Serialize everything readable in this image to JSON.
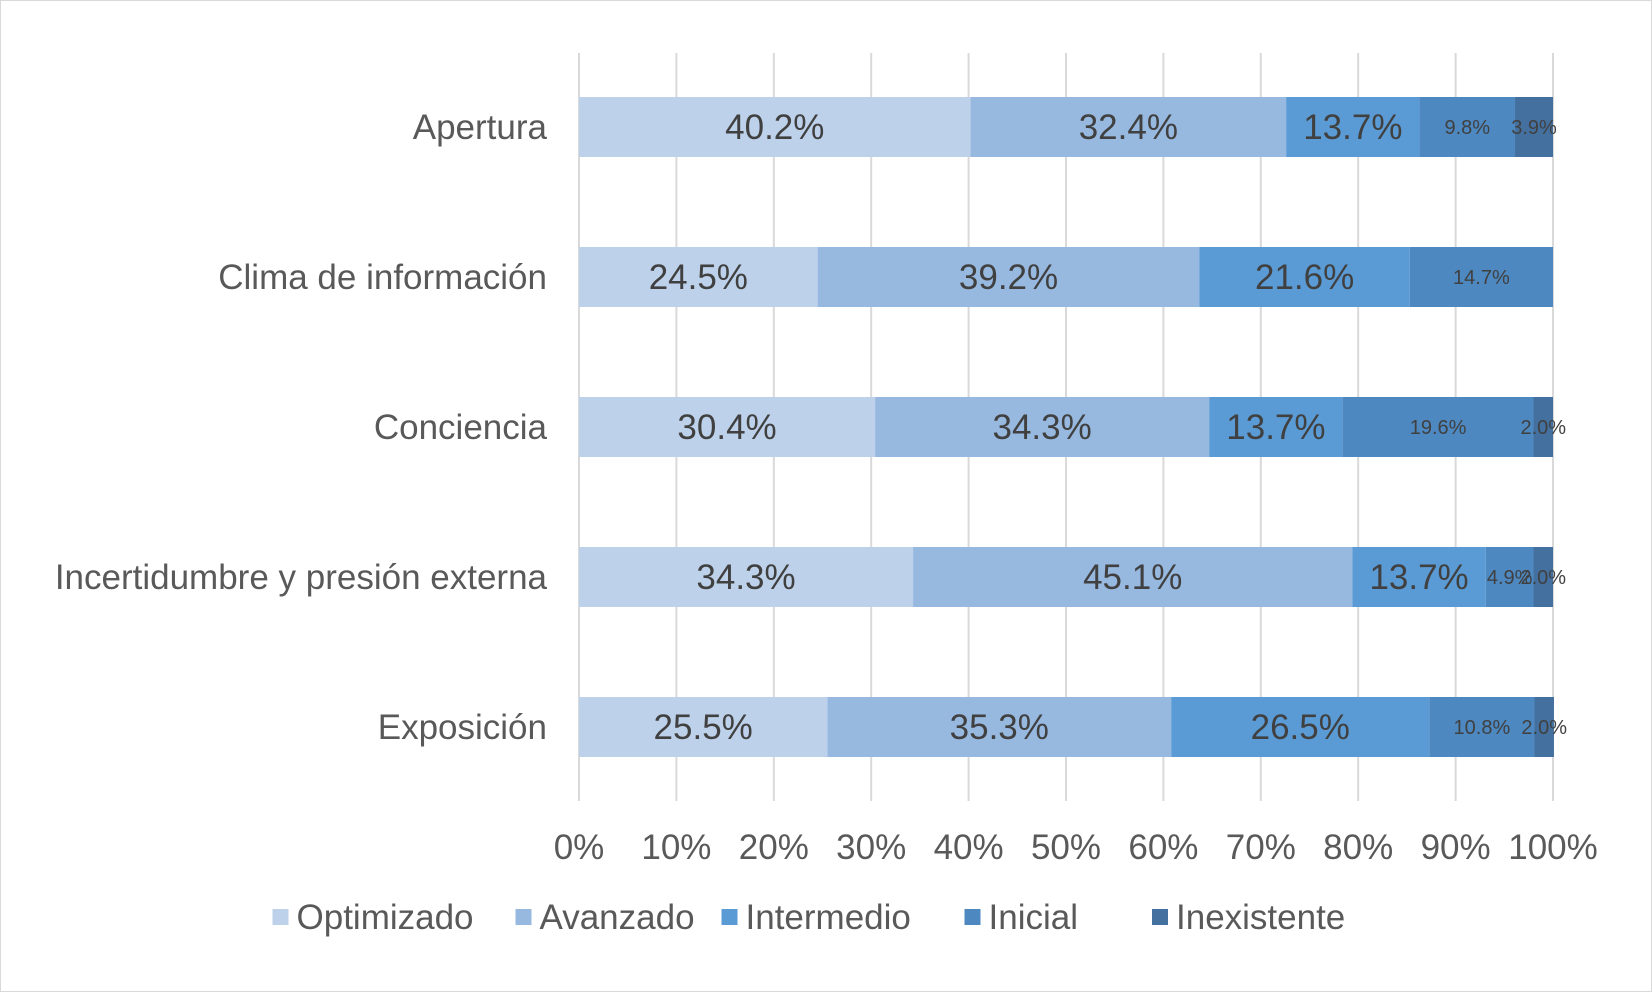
{
  "chart_data": {
    "type": "bar",
    "orientation": "horizontal",
    "stacked": "percent",
    "title": "",
    "xlabel": "",
    "ylabel": "",
    "xlim": [
      0,
      100
    ],
    "grid": true,
    "legend_position": "bottom",
    "categories": [
      "Apertura",
      "Clima de información",
      "Conciencia",
      "Incertidumbre y presión externa",
      "Exposición"
    ],
    "x_ticks": [
      "0%",
      "10%",
      "20%",
      "30%",
      "40%",
      "50%",
      "60%",
      "70%",
      "80%",
      "90%",
      "100%"
    ],
    "series": [
      {
        "name": "Optimizado",
        "color": "#bdd1ea",
        "values": [
          40.2,
          24.5,
          30.4,
          34.3,
          25.5
        ],
        "labels": [
          "40.2%",
          "24.5%",
          "30.4%",
          "34.3%",
          "25.5%"
        ]
      },
      {
        "name": "Avanzado",
        "color": "#97b8df",
        "values": [
          32.4,
          39.2,
          34.3,
          45.1,
          35.3
        ],
        "labels": [
          "32.4%",
          "39.2%",
          "34.3%",
          "45.1%",
          "35.3%"
        ]
      },
      {
        "name": "Intermedio",
        "color": "#5b9bd5",
        "values": [
          13.7,
          21.6,
          13.7,
          13.7,
          26.5
        ],
        "labels": [
          "13.7%",
          "21.6%",
          "13.7%",
          "13.7%",
          "26.5%"
        ]
      },
      {
        "name": "Inicial",
        "color": "#4d88c0",
        "values": [
          9.8,
          14.7,
          19.6,
          4.9,
          10.8
        ],
        "labels": [
          "9.8%",
          "14.7%",
          "19.6%",
          "4.9%",
          "10.8%"
        ]
      },
      {
        "name": "Inexistente",
        "color": "#44709f",
        "values": [
          3.9,
          0,
          2.0,
          2.0,
          2.0
        ],
        "labels": [
          "3.9%",
          "",
          "2.0%",
          "2.0%",
          "2.0%"
        ]
      }
    ]
  }
}
